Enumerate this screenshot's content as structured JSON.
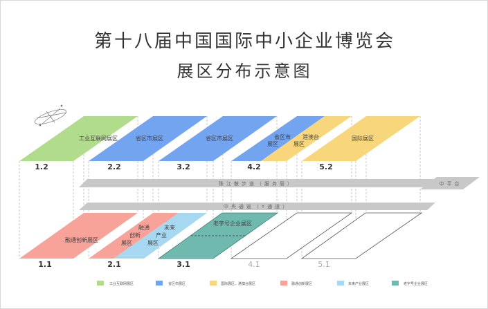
{
  "title": "第十八届中国国际中小企业博览会",
  "subtitle": "展区分布示意图",
  "colors": {
    "industrial_internet": "#b0dc8c",
    "provinces": "#72a4f0",
    "international_hkmt": "#f8d77c",
    "integration_innovation": "#f7a39a",
    "future_industry": "#a6d8f2",
    "time_honored": "#6fb9ae",
    "walkway": "#c8c8c8"
  },
  "upper_halls": [
    {
      "id": "1.2",
      "zones": [
        "工业互联网展区"
      ]
    },
    {
      "id": "2.2",
      "zones": [
        "省区市展区"
      ]
    },
    {
      "id": "3.2",
      "zones": [
        "省区市展区"
      ]
    },
    {
      "id": "4.2",
      "zones": [
        "省区市展区",
        "港澳台展区"
      ]
    },
    {
      "id": "5.2",
      "zones": [
        "国际展区"
      ]
    }
  ],
  "lower_halls": [
    {
      "id": "1.1",
      "zones": [
        "融通创新展区"
      ]
    },
    {
      "id": "2.1",
      "zones": [
        "融通创新展区",
        "未来产业展区"
      ]
    },
    {
      "id": "3.1",
      "zones": [
        "老字号企业展区"
      ]
    },
    {
      "id": "4.1",
      "zones": []
    },
    {
      "id": "5.1",
      "zones": []
    }
  ],
  "walkway": "珠江散步道（服务层）",
  "platform": "中平台",
  "channel": "中央通道（Y通道）",
  "legend": [
    {
      "label": "工业互联网展区",
      "color": "#b0dc8c"
    },
    {
      "label": "省区市展区",
      "color": "#72a4f0"
    },
    {
      "label": "国际展区、港澳台展区",
      "color": "#f8d77c"
    },
    {
      "label": "融通创新展区",
      "color": "#f7a39a"
    },
    {
      "label": "未来产业展区",
      "color": "#a6d8f2"
    },
    {
      "label": "老字号企业展区",
      "color": "#6fb9ae"
    }
  ],
  "icons": [
    "compass-icon"
  ]
}
